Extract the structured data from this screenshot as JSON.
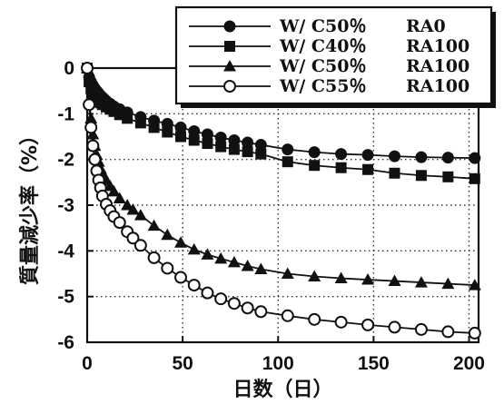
{
  "chart_data": {
    "type": "line",
    "xlabel": "日数（日）",
    "ylabel": "質量減少率（%）",
    "xlim": [
      0,
      205
    ],
    "ylim": [
      -6,
      0
    ],
    "xticks": [
      0,
      50,
      100,
      150,
      200
    ],
    "yticks": [
      0,
      -1,
      -2,
      -3,
      -4,
      -5,
      -6
    ],
    "grid": true,
    "legend_position": "top-right",
    "series": [
      {
        "name": "W/ C50％ RA0",
        "marker": "filled-circle",
        "color": "#111111",
        "x": [
          0,
          1,
          2,
          3,
          4,
          5,
          6,
          7,
          8,
          9,
          10,
          12,
          14,
          17,
          21,
          28,
          35,
          42,
          49,
          56,
          63,
          70,
          77,
          84,
          91,
          105,
          119,
          133,
          147,
          161,
          175,
          189,
          203
        ],
        "y": [
          0,
          -0.2,
          -0.3,
          -0.38,
          -0.45,
          -0.5,
          -0.55,
          -0.6,
          -0.64,
          -0.68,
          -0.72,
          -0.78,
          -0.84,
          -0.9,
          -0.97,
          -1.07,
          -1.15,
          -1.22,
          -1.3,
          -1.38,
          -1.45,
          -1.52,
          -1.58,
          -1.63,
          -1.68,
          -1.78,
          -1.84,
          -1.88,
          -1.9,
          -1.93,
          -1.95,
          -1.96,
          -1.97
        ]
      },
      {
        "name": "W/ C40％ RA100",
        "marker": "filled-square",
        "color": "#111111",
        "x": [
          0,
          1,
          2,
          3,
          4,
          5,
          6,
          7,
          8,
          10,
          12,
          14,
          17,
          21,
          28,
          35,
          42,
          49,
          56,
          63,
          70,
          77,
          84,
          91,
          105,
          119,
          133,
          147,
          161,
          175,
          189,
          203
        ],
        "y": [
          0,
          -0.3,
          -0.45,
          -0.55,
          -0.62,
          -0.68,
          -0.72,
          -0.76,
          -0.8,
          -0.85,
          -0.9,
          -0.95,
          -1.02,
          -1.1,
          -1.2,
          -1.3,
          -1.4,
          -1.5,
          -1.58,
          -1.65,
          -1.72,
          -1.78,
          -1.83,
          -1.88,
          -2.05,
          -2.13,
          -2.18,
          -2.22,
          -2.3,
          -2.35,
          -2.38,
          -2.42
        ]
      },
      {
        "name": "W/ C50％ RA100",
        "marker": "filled-triangle",
        "color": "#111111",
        "x": [
          0,
          1,
          2,
          3,
          4,
          5,
          6,
          7,
          8,
          10,
          12,
          14,
          17,
          21,
          24,
          28,
          35,
          42,
          49,
          56,
          63,
          70,
          77,
          84,
          91,
          105,
          119,
          133,
          147,
          161,
          175,
          189,
          203
        ],
        "y": [
          0,
          -0.7,
          -1.1,
          -1.45,
          -1.7,
          -1.9,
          -2.05,
          -2.2,
          -2.3,
          -2.45,
          -2.58,
          -2.7,
          -2.85,
          -3.0,
          -3.1,
          -3.22,
          -3.45,
          -3.65,
          -3.82,
          -3.97,
          -4.08,
          -4.17,
          -4.25,
          -4.33,
          -4.4,
          -4.5,
          -4.56,
          -4.6,
          -4.63,
          -4.66,
          -4.69,
          -4.72,
          -4.75
        ]
      },
      {
        "name": "W/ C55％ RA100",
        "marker": "open-circle",
        "color": "#111111",
        "x": [
          0,
          1,
          2,
          3,
          4,
          5,
          6,
          7,
          8,
          10,
          12,
          14,
          17,
          21,
          24,
          28,
          35,
          42,
          49,
          56,
          63,
          70,
          77,
          84,
          91,
          105,
          119,
          133,
          147,
          161,
          175,
          189,
          203
        ],
        "y": [
          0,
          -0.8,
          -1.3,
          -1.7,
          -2.0,
          -2.25,
          -2.45,
          -2.62,
          -2.8,
          -2.98,
          -3.12,
          -3.25,
          -3.38,
          -3.58,
          -3.72,
          -3.88,
          -4.15,
          -4.38,
          -4.58,
          -4.75,
          -4.92,
          -5.05,
          -5.15,
          -5.25,
          -5.33,
          -5.42,
          -5.5,
          -5.56,
          -5.62,
          -5.67,
          -5.72,
          -5.77,
          -5.8
        ]
      }
    ]
  },
  "legend": {
    "rows": [
      {
        "wc": "W/ C50％",
        "ra": "RA0"
      },
      {
        "wc": "W/ C40％",
        "ra": "RA100"
      },
      {
        "wc": "W/ C50％",
        "ra": "RA100"
      },
      {
        "wc": "W/ C55％",
        "ra": "RA100"
      }
    ]
  }
}
